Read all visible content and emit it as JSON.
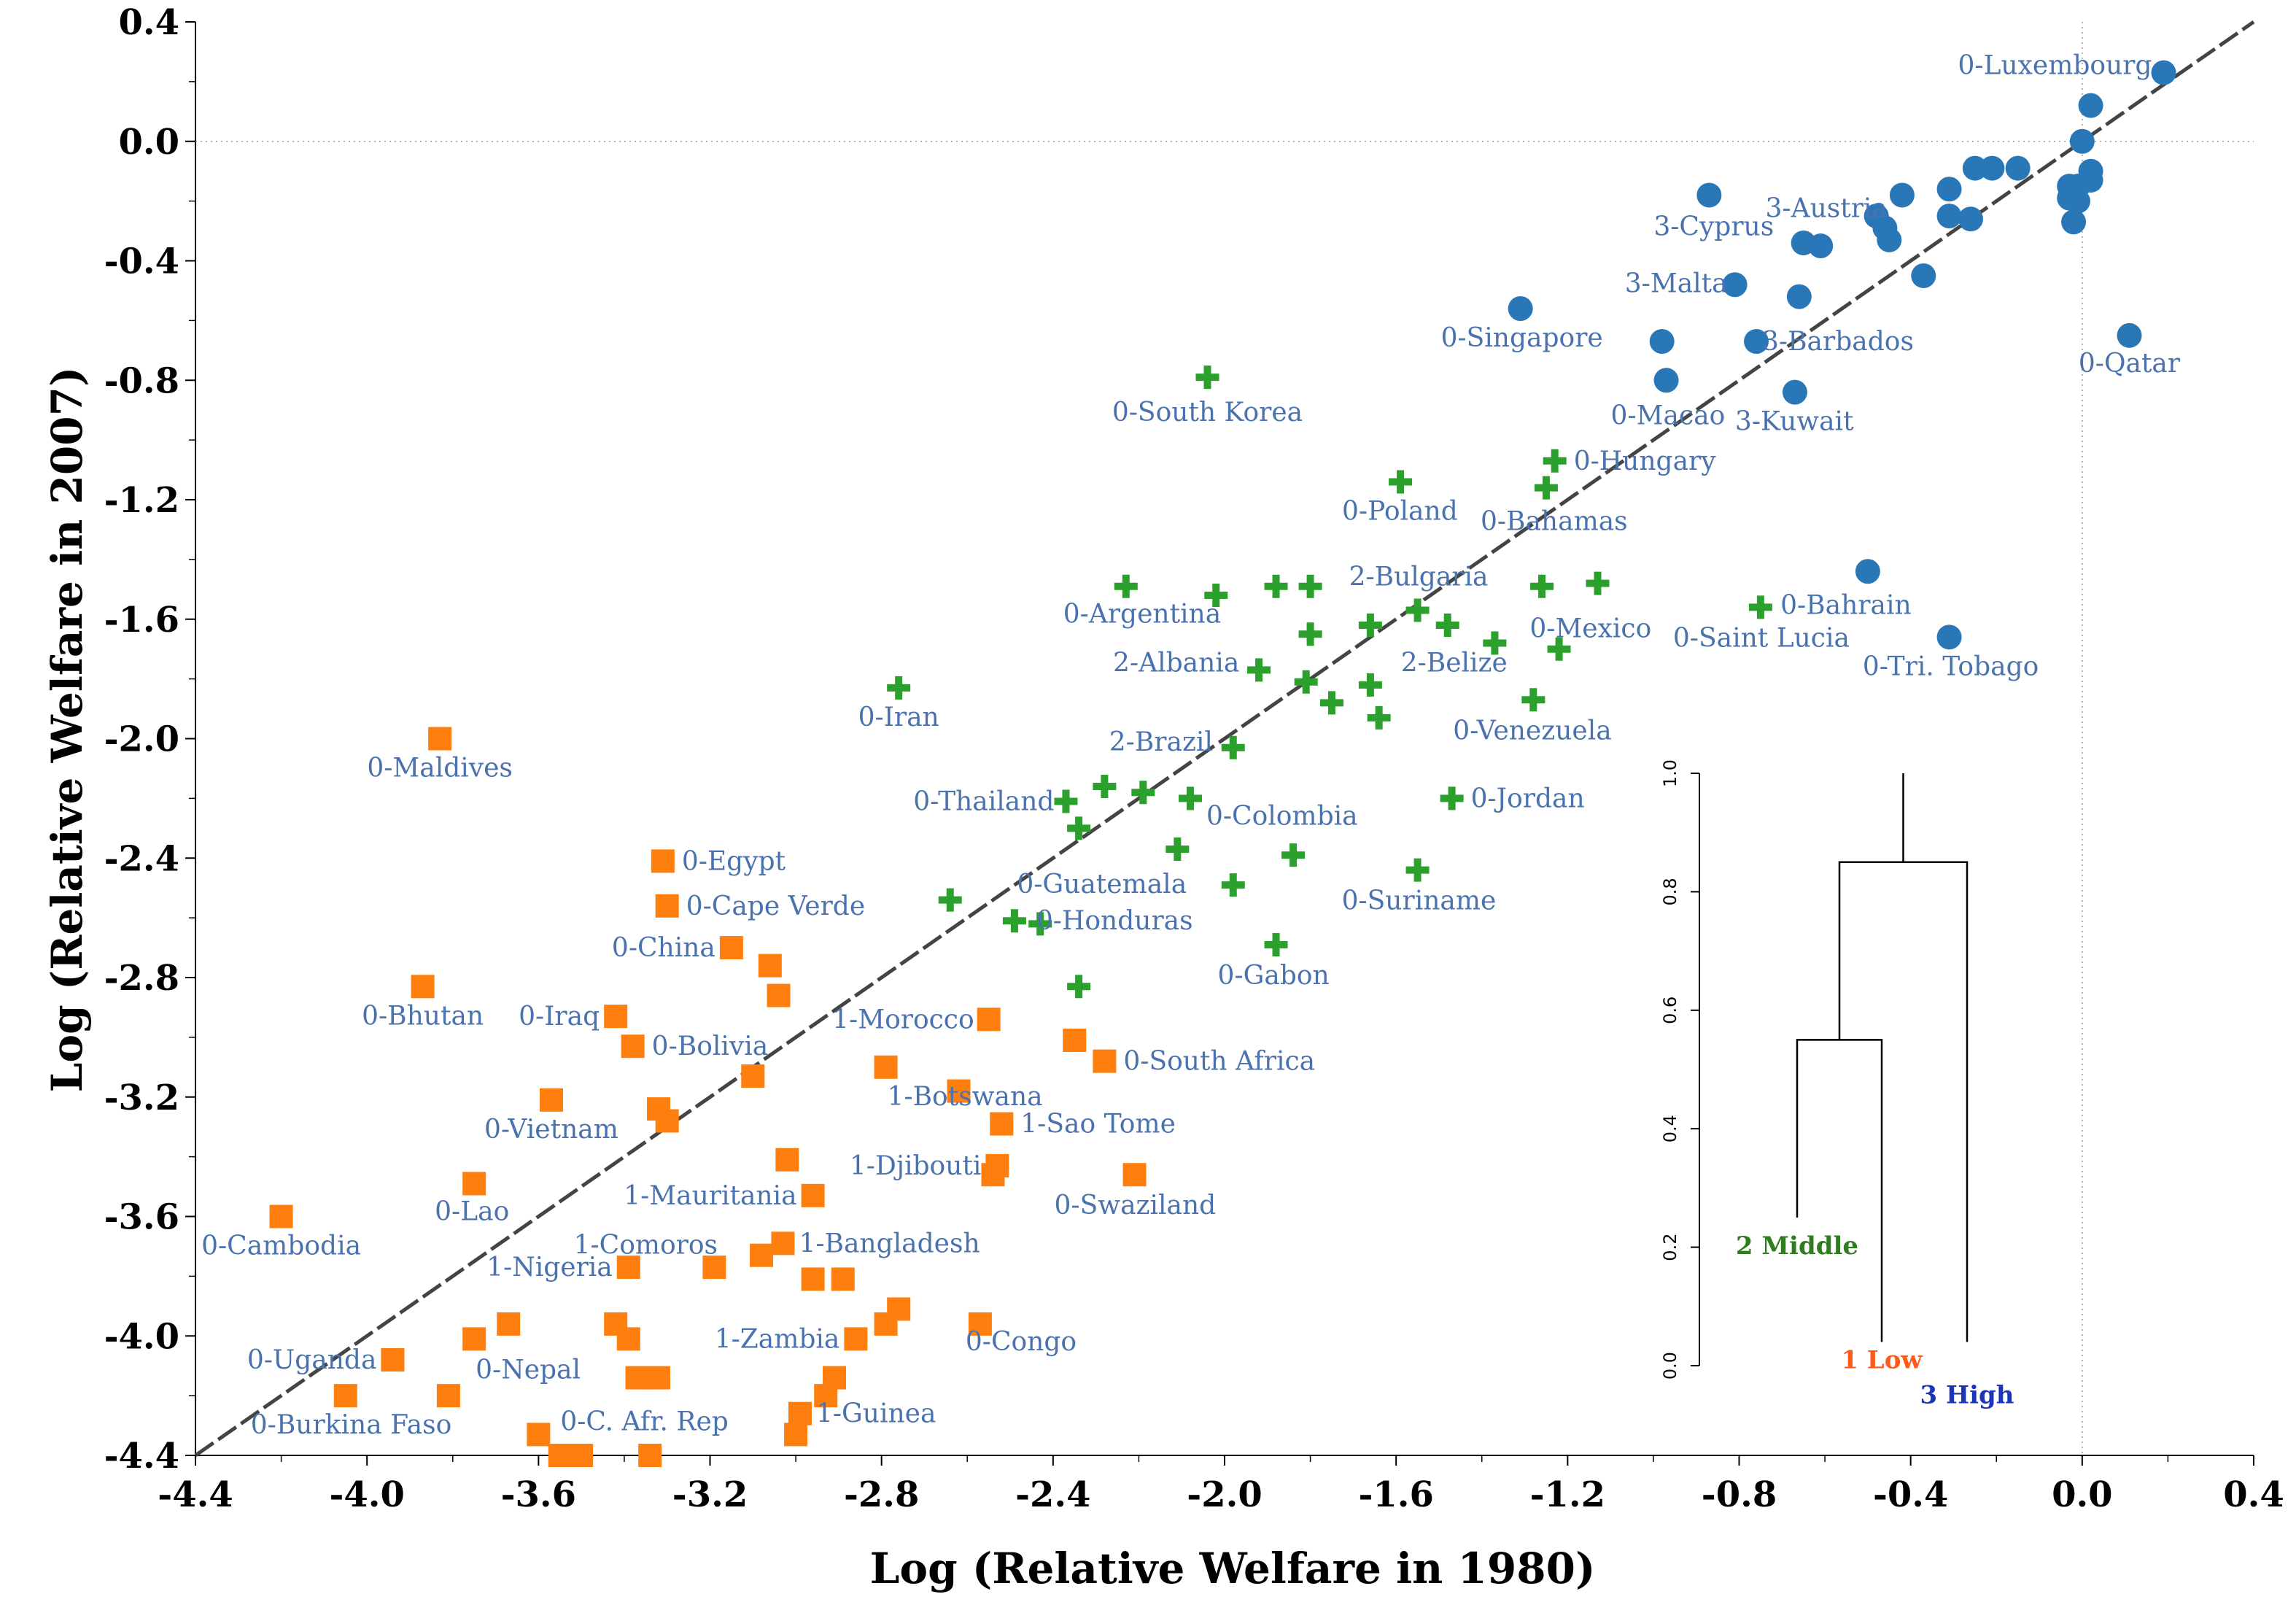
{
  "chart_data": {
    "type": "scatter",
    "xlabel": "Log (Relative Welfare in 1980)",
    "ylabel": "Log (Relative Welfare in 2007)",
    "xlim": [
      -4.4,
      0.4
    ],
    "ylim": [
      -4.4,
      0.4
    ],
    "xticks": [
      "-4.4",
      "-4.0",
      "-3.6",
      "-3.2",
      "-2.8",
      "-2.4",
      "-2.0",
      "-1.6",
      "-1.2",
      "-0.8",
      "-0.4",
      "0.0",
      "0.4"
    ],
    "yticks": [
      "0.4",
      "0.0",
      "-0.4",
      "-0.8",
      "-1.2",
      "-1.6",
      "-2.0",
      "-2.4",
      "-2.8",
      "-3.2",
      "-3.6",
      "-4.0",
      "-4.4"
    ],
    "reference_line": "45-degree dashed line y = x",
    "colors": {
      "high": "#2a77b8",
      "middle": "#2ca02c",
      "low": "#ff7f0e",
      "label": "#4a72ae",
      "ref_line": "#444444"
    },
    "series": [
      {
        "group": "high",
        "marker": "circle",
        "points": [
          {
            "x": 0.19,
            "y": 0.23,
            "label": "0-Luxembourg"
          },
          {
            "x": 0.02,
            "y": 0.12,
            "label": ""
          },
          {
            "x": 0.0,
            "y": 0.0,
            "label": ""
          },
          {
            "x": -0.15,
            "y": -0.09,
            "label": ""
          },
          {
            "x": -0.21,
            "y": -0.09,
            "label": ""
          },
          {
            "x": -0.25,
            "y": -0.09,
            "label": ""
          },
          {
            "x": 0.02,
            "y": -0.1,
            "label": ""
          },
          {
            "x": 0.02,
            "y": -0.13,
            "label": ""
          },
          {
            "x": -0.01,
            "y": -0.15,
            "label": ""
          },
          {
            "x": -0.03,
            "y": -0.15,
            "label": ""
          },
          {
            "x": -0.03,
            "y": -0.19,
            "label": ""
          },
          {
            "x": -0.01,
            "y": -0.2,
            "label": ""
          },
          {
            "x": -0.02,
            "y": -0.27,
            "label": ""
          },
          {
            "x": -0.31,
            "y": -0.16,
            "label": ""
          },
          {
            "x": -0.42,
            "y": -0.18,
            "label": "3-Austria"
          },
          {
            "x": -0.87,
            "y": -0.18,
            "label": "3-Cyprus"
          },
          {
            "x": -0.48,
            "y": -0.25,
            "label": ""
          },
          {
            "x": -0.31,
            "y": -0.25,
            "label": ""
          },
          {
            "x": -0.26,
            "y": -0.26,
            "label": ""
          },
          {
            "x": -0.46,
            "y": -0.29,
            "label": ""
          },
          {
            "x": -0.45,
            "y": -0.33,
            "label": ""
          },
          {
            "x": -0.65,
            "y": -0.34,
            "label": ""
          },
          {
            "x": -0.61,
            "y": -0.35,
            "label": ""
          },
          {
            "x": -0.37,
            "y": -0.45,
            "label": ""
          },
          {
            "x": -0.81,
            "y": -0.48,
            "label": "3-Malta"
          },
          {
            "x": -0.66,
            "y": -0.52,
            "label": ""
          },
          {
            "x": -1.31,
            "y": -0.56,
            "label": "0-Singapore"
          },
          {
            "x": -0.76,
            "y": -0.67,
            "label": "3-Barbados"
          },
          {
            "x": -0.98,
            "y": -0.67,
            "label": ""
          },
          {
            "x": 0.11,
            "y": -0.65,
            "label": "0-Qatar"
          },
          {
            "x": -0.97,
            "y": -0.8,
            "label": "0-Macao"
          },
          {
            "x": -0.67,
            "y": -0.84,
            "label": "3-Kuwait"
          },
          {
            "x": -0.5,
            "y": -1.44,
            "label": "0-Bahrain"
          },
          {
            "x": -0.31,
            "y": -1.66,
            "label": "0-Tri. Tobago"
          }
        ]
      },
      {
        "group": "middle",
        "marker": "cross",
        "points": [
          {
            "x": -2.04,
            "y": -0.79,
            "label": "0-South Korea"
          },
          {
            "x": -1.23,
            "y": -1.07,
            "label": "0-Hungary"
          },
          {
            "x": -1.59,
            "y": -1.14,
            "label": "0-Poland"
          },
          {
            "x": -1.25,
            "y": -1.16,
            "label": "0-Bahamas"
          },
          {
            "x": -2.23,
            "y": -1.49,
            "label": "0-Argentina"
          },
          {
            "x": -2.02,
            "y": -1.52,
            "label": ""
          },
          {
            "x": -1.88,
            "y": -1.49,
            "label": ""
          },
          {
            "x": -1.8,
            "y": -1.49,
            "label": ""
          },
          {
            "x": -1.26,
            "y": -1.49,
            "label": ""
          },
          {
            "x": -1.13,
            "y": -1.48,
            "label": ""
          },
          {
            "x": -1.55,
            "y": -1.57,
            "label": "2-Bulgaria"
          },
          {
            "x": -1.66,
            "y": -1.62,
            "label": ""
          },
          {
            "x": -1.48,
            "y": -1.62,
            "label": ""
          },
          {
            "x": -1.8,
            "y": -1.65,
            "label": ""
          },
          {
            "x": -0.75,
            "y": -1.56,
            "label": "0-Saint Lucia"
          },
          {
            "x": -1.37,
            "y": -1.68,
            "label": "0-Mexico"
          },
          {
            "x": -1.22,
            "y": -1.7,
            "label": ""
          },
          {
            "x": -1.92,
            "y": -1.77,
            "label": "2-Albania"
          },
          {
            "x": -1.81,
            "y": -1.81,
            "label": "2-Belize"
          },
          {
            "x": -1.66,
            "y": -1.82,
            "label": ""
          },
          {
            "x": -1.75,
            "y": -1.88,
            "label": ""
          },
          {
            "x": -1.64,
            "y": -1.93,
            "label": ""
          },
          {
            "x": -1.28,
            "y": -1.87,
            "label": "0-Venezuela"
          },
          {
            "x": -2.76,
            "y": -1.83,
            "label": "0-Iran"
          },
          {
            "x": -1.98,
            "y": -2.03,
            "label": "2-Brazil"
          },
          {
            "x": -2.37,
            "y": -2.21,
            "label": "0-Thailand"
          },
          {
            "x": -2.28,
            "y": -2.16,
            "label": ""
          },
          {
            "x": -2.19,
            "y": -2.18,
            "label": ""
          },
          {
            "x": -2.08,
            "y": -2.2,
            "label": "0-Colombia"
          },
          {
            "x": -2.34,
            "y": -2.3,
            "label": ""
          },
          {
            "x": -1.47,
            "y": -2.2,
            "label": "0-Jordan"
          },
          {
            "x": -2.11,
            "y": -2.37,
            "label": "0-Guatemala"
          },
          {
            "x": -1.84,
            "y": -2.39,
            "label": ""
          },
          {
            "x": -1.55,
            "y": -2.44,
            "label": "0-Suriname"
          },
          {
            "x": -1.98,
            "y": -2.49,
            "label": ""
          },
          {
            "x": -2.64,
            "y": -2.54,
            "label": ""
          },
          {
            "x": -2.49,
            "y": -2.61,
            "label": "0-Honduras"
          },
          {
            "x": -2.43,
            "y": -2.62,
            "label": ""
          },
          {
            "x": -1.88,
            "y": -2.69,
            "label": "0-Gabon"
          },
          {
            "x": -2.34,
            "y": -2.83,
            "label": ""
          }
        ]
      },
      {
        "group": "low",
        "marker": "square",
        "points": [
          {
            "x": -3.83,
            "y": -2.0,
            "label": "0-Maldives"
          },
          {
            "x": -3.31,
            "y": -2.41,
            "label": "0-Egypt"
          },
          {
            "x": -3.3,
            "y": -2.56,
            "label": "0-Cape Verde"
          },
          {
            "x": -3.15,
            "y": -2.7,
            "label": "0-China"
          },
          {
            "x": -3.06,
            "y": -2.76,
            "label": ""
          },
          {
            "x": -3.04,
            "y": -2.86,
            "label": ""
          },
          {
            "x": -3.87,
            "y": -2.83,
            "label": "0-Bhutan"
          },
          {
            "x": -3.42,
            "y": -2.93,
            "label": "0-Iraq"
          },
          {
            "x": -3.38,
            "y": -3.03,
            "label": "0-Bolivia"
          },
          {
            "x": -2.55,
            "y": -2.94,
            "label": "1-Morocco"
          },
          {
            "x": -2.35,
            "y": -3.01,
            "label": ""
          },
          {
            "x": -2.28,
            "y": -3.08,
            "label": "0-South Africa"
          },
          {
            "x": -3.1,
            "y": -3.13,
            "label": ""
          },
          {
            "x": -2.79,
            "y": -3.1,
            "label": "1-Botswana"
          },
          {
            "x": -2.62,
            "y": -3.18,
            "label": ""
          },
          {
            "x": -3.57,
            "y": -3.21,
            "label": "0-Vietnam"
          },
          {
            "x": -3.32,
            "y": -3.24,
            "label": ""
          },
          {
            "x": -3.3,
            "y": -3.28,
            "label": ""
          },
          {
            "x": -2.52,
            "y": -3.29,
            "label": "1-Sao Tome"
          },
          {
            "x": -3.02,
            "y": -3.41,
            "label": ""
          },
          {
            "x": -2.53,
            "y": -3.43,
            "label": "1-Djibouti"
          },
          {
            "x": -2.54,
            "y": -3.46,
            "label": ""
          },
          {
            "x": -2.21,
            "y": -3.46,
            "label": "0-Swaziland"
          },
          {
            "x": -3.75,
            "y": -3.49,
            "label": "0-Lao"
          },
          {
            "x": -2.96,
            "y": -3.53,
            "label": "1-Mauritania"
          },
          {
            "x": -4.2,
            "y": -3.6,
            "label": "0-Cambodia"
          },
          {
            "x": -3.03,
            "y": -3.69,
            "label": "1-Bangladesh"
          },
          {
            "x": -3.08,
            "y": -3.73,
            "label": "1-Comoros"
          },
          {
            "x": -3.39,
            "y": -3.77,
            "label": "1-Nigeria"
          },
          {
            "x": -3.19,
            "y": -3.77,
            "label": ""
          },
          {
            "x": -2.96,
            "y": -3.81,
            "label": ""
          },
          {
            "x": -2.89,
            "y": -3.81,
            "label": ""
          },
          {
            "x": -2.76,
            "y": -3.91,
            "label": ""
          },
          {
            "x": -2.79,
            "y": -3.96,
            "label": ""
          },
          {
            "x": -2.57,
            "y": -3.96,
            "label": "0-Congo"
          },
          {
            "x": -2.86,
            "y": -4.01,
            "label": "1-Zambia"
          },
          {
            "x": -3.67,
            "y": -3.96,
            "label": ""
          },
          {
            "x": -3.75,
            "y": -4.01,
            "label": "0-Nepal"
          },
          {
            "x": -3.42,
            "y": -3.96,
            "label": ""
          },
          {
            "x": -3.39,
            "y": -4.01,
            "label": ""
          },
          {
            "x": -3.94,
            "y": -4.08,
            "label": "0-Uganda"
          },
          {
            "x": -3.37,
            "y": -4.14,
            "label": ""
          },
          {
            "x": -3.32,
            "y": -4.14,
            "label": ""
          },
          {
            "x": -2.91,
            "y": -4.14,
            "label": ""
          },
          {
            "x": -2.93,
            "y": -4.2,
            "label": ""
          },
          {
            "x": -4.05,
            "y": -4.2,
            "label": "0-Burkina Faso"
          },
          {
            "x": -3.81,
            "y": -4.2,
            "label": ""
          },
          {
            "x": -2.99,
            "y": -4.26,
            "label": "1-Guinea"
          },
          {
            "x": -3.0,
            "y": -4.33,
            "label": ""
          },
          {
            "x": -3.6,
            "y": -4.33,
            "label": "0-C. Afr. Rep"
          },
          {
            "x": -3.55,
            "y": -4.4,
            "label": ""
          },
          {
            "x": -3.5,
            "y": -4.4,
            "label": ""
          },
          {
            "x": -3.34,
            "y": -4.4,
            "label": ""
          }
        ]
      }
    ],
    "inset_dendrogram": {
      "yticks": [
        "0.0",
        "0.2",
        "0.4",
        "0.6",
        "0.8",
        "1.0"
      ],
      "ylim": [
        0,
        1.0
      ],
      "leaves": [
        {
          "label": "2 Middle",
          "color": "#2e7d1e"
        },
        {
          "label": "1 Low",
          "color": "#ff5a1a"
        },
        {
          "label": "3 High",
          "color": "#1c35b8"
        }
      ],
      "merge_low_middle_height": 0.55,
      "merge_all_height": 0.85
    }
  }
}
